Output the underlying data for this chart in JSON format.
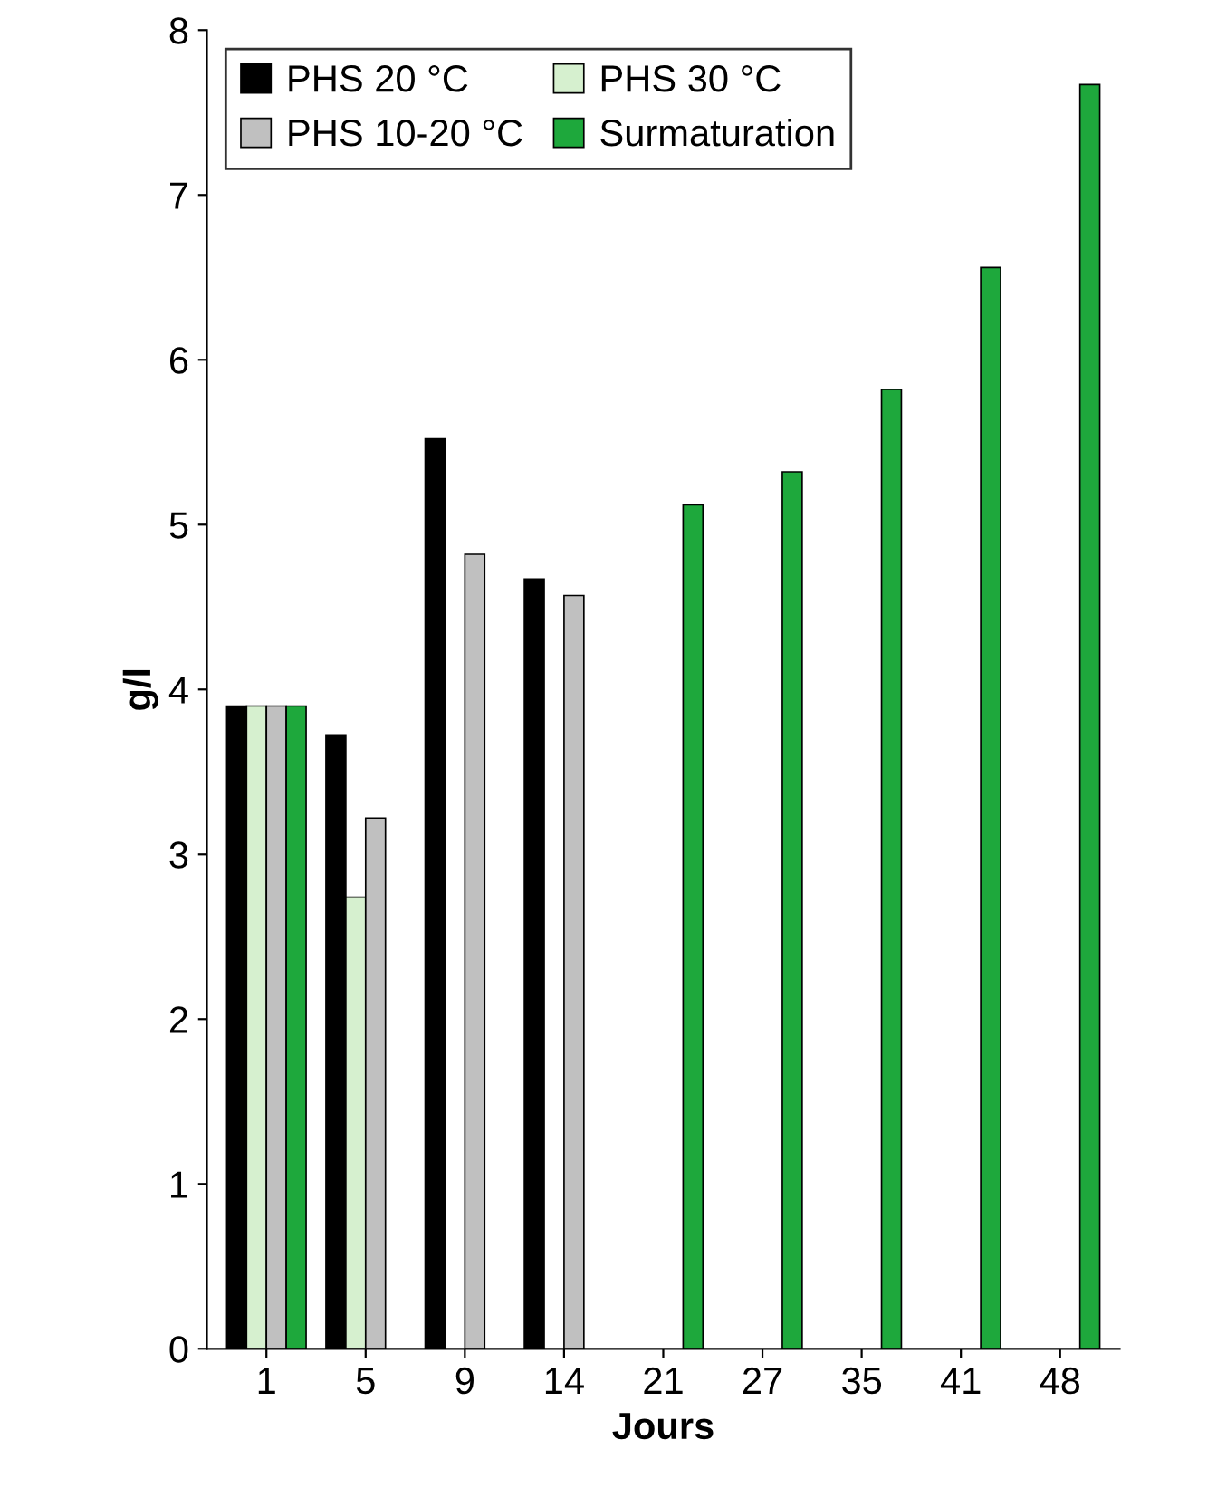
{
  "chart_data": {
    "type": "bar",
    "xlabel": "Jours",
    "ylabel": "g/l",
    "categories": [
      "1",
      "5",
      "9",
      "14",
      "21",
      "27",
      "35",
      "41",
      "48"
    ],
    "series": [
      {
        "name": "PHS 20 °C",
        "color": "#000000",
        "values": [
          3.9,
          3.72,
          5.52,
          4.67,
          null,
          null,
          null,
          null,
          null
        ]
      },
      {
        "name": "PHS 30 °C",
        "color": "#d6f0cf",
        "values": [
          3.9,
          2.74,
          null,
          null,
          null,
          null,
          null,
          null,
          null
        ]
      },
      {
        "name": "PHS 10-20 °C",
        "color": "#c0c0c0",
        "values": [
          3.9,
          3.22,
          4.82,
          4.57,
          null,
          null,
          null,
          null,
          null
        ]
      },
      {
        "name": "Surmaturation",
        "color": "#1ea83c",
        "values": [
          3.9,
          null,
          null,
          null,
          5.12,
          5.32,
          5.82,
          6.56,
          7.67
        ]
      }
    ],
    "ylim": [
      0,
      8
    ],
    "yticks": [
      0,
      1,
      2,
      3,
      4,
      5,
      6,
      7,
      8
    ],
    "grid": false,
    "legend": "top left"
  }
}
